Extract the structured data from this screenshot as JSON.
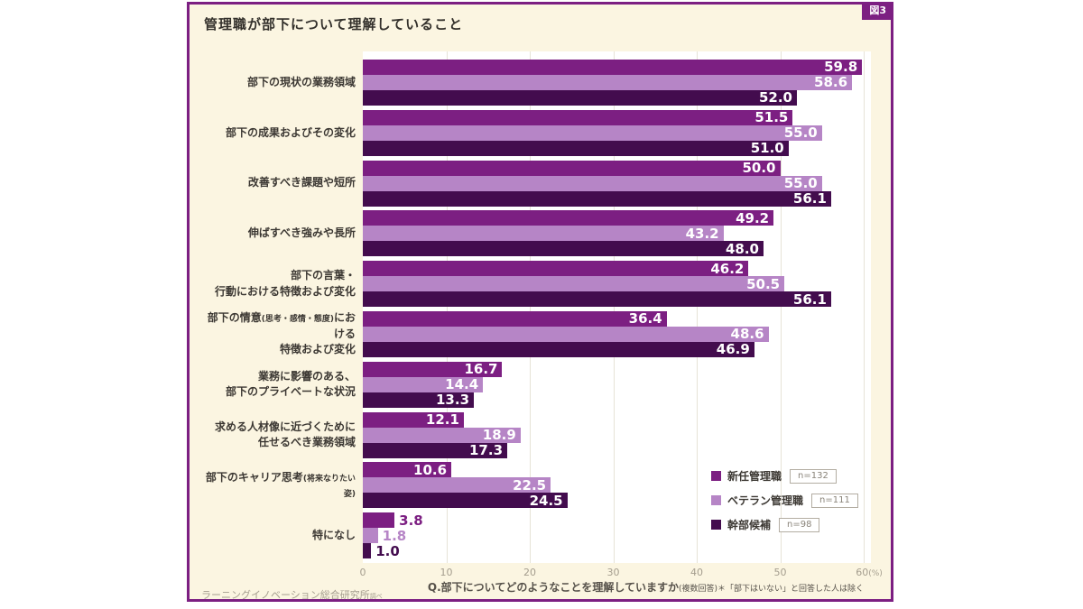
{
  "header": {
    "figure_tag": "図3",
    "title": "管理職が部下について理解していること"
  },
  "chart_data": {
    "type": "bar",
    "orientation": "horizontal",
    "title": "管理職が部下について理解していること",
    "xlim": [
      0,
      60
    ],
    "x_ticks": [
      0,
      10,
      20,
      30,
      40,
      50,
      60
    ],
    "x_unit": "(%)",
    "grid": true,
    "legend_position": "inside-bottom-right",
    "categories": [
      "部下の現状の業務領域",
      "部下の成果およびその変化",
      "改善すべき課題や短所",
      "伸ばすべき強みや長所",
      "部下の言葉・行動における特徴および変化",
      "部下の情意(思考・感情・態度)における特徴および変化",
      "業務に影響のある、部下のプライベートな状況",
      "求める人材像に近づくために任せるべき業務領域",
      "部下のキャリア思考(将来なりたい姿)",
      "特になし"
    ],
    "category_lines": [
      [
        [
          {
            "t": "部下の現状の業務領域",
            "small": false
          }
        ]
      ],
      [
        [
          {
            "t": "部下の成果およびその変化",
            "small": false
          }
        ]
      ],
      [
        [
          {
            "t": "改善すべき課題や短所",
            "small": false
          }
        ]
      ],
      [
        [
          {
            "t": "伸ばすべき強みや長所",
            "small": false
          }
        ]
      ],
      [
        [
          {
            "t": "部下の言葉・",
            "small": false
          }
        ],
        [
          {
            "t": "行動における特徴および変化",
            "small": false
          }
        ]
      ],
      [
        [
          {
            "t": "部下の情意",
            "small": false
          },
          {
            "t": "(思考・感情・態度)",
            "small": true
          },
          {
            "t": "における",
            "small": false
          }
        ],
        [
          {
            "t": "特徴および変化",
            "small": false
          }
        ]
      ],
      [
        [
          {
            "t": "業務に影響のある、",
            "small": false
          }
        ],
        [
          {
            "t": "部下のプライベートな状況",
            "small": false
          }
        ]
      ],
      [
        [
          {
            "t": "求める人材像に近づくために",
            "small": false
          }
        ],
        [
          {
            "t": "任せるべき業務領域",
            "small": false
          }
        ]
      ],
      [
        [
          {
            "t": "部下のキャリア思考",
            "small": false
          },
          {
            "t": "(将来なりたい姿)",
            "small": true
          }
        ]
      ],
      [
        [
          {
            "t": "特になし",
            "small": false
          }
        ]
      ]
    ],
    "series": [
      {
        "name": "新任管理職",
        "n_label": "n=132",
        "color": "#7c1f82",
        "values": [
          59.8,
          51.5,
          50.0,
          49.2,
          46.2,
          36.4,
          16.7,
          12.1,
          10.6,
          3.8
        ]
      },
      {
        "name": "ベテラン管理職",
        "n_label": "n=111",
        "color": "#b685c6",
        "values": [
          58.6,
          55.0,
          55.0,
          43.2,
          50.5,
          48.6,
          14.4,
          18.9,
          22.5,
          1.8
        ]
      },
      {
        "name": "幹部候補",
        "n_label": "n=98",
        "color": "#430c4e",
        "values": [
          52.0,
          51.0,
          56.1,
          48.0,
          56.1,
          46.9,
          13.3,
          17.3,
          24.5,
          1.0
        ]
      }
    ]
  },
  "footer": {
    "question": "Q.部下についてどのようなことを理解していますか",
    "question_note": "(複数回答)＊「部下はいない」と回答した人は除く",
    "source": "ラーニングイノベーション総合研究所",
    "source_suffix": "調べ"
  }
}
